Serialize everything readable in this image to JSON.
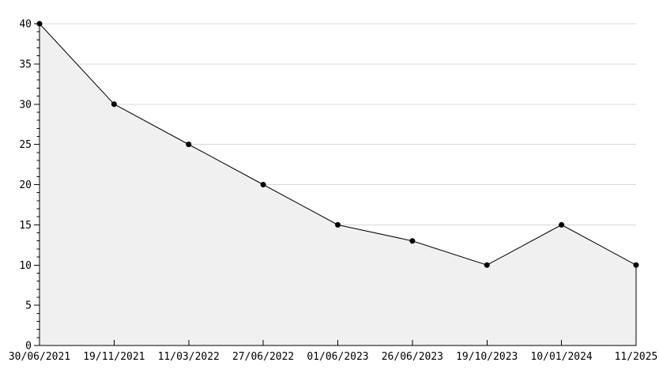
{
  "chart_data": {
    "type": "area",
    "title": "",
    "xlabel": "",
    "ylabel": "",
    "legend": "none",
    "grid": "horizontal-major",
    "marker": "filled-circle",
    "categories": [
      "30/06/2021",
      "19/11/2021",
      "11/03/2022",
      "27/06/2022",
      "01/06/2023",
      "26/06/2023",
      "19/10/2023",
      "10/01/2024",
      "11/2025"
    ],
    "values": [
      40,
      30,
      25,
      20,
      15,
      13,
      10,
      15,
      10
    ],
    "ylim": [
      0,
      40
    ],
    "y_major_step": 5,
    "y_minor_step": 1,
    "y_tick_labels": [
      "0",
      "5",
      "10",
      "15",
      "20",
      "25",
      "30",
      "35",
      "40"
    ],
    "colors": {
      "background": "#ffffff",
      "plot_line": "#000000",
      "marker": "#000000",
      "area_fill": "#f0f0f0",
      "gridline": "#d8d8d8",
      "axis": "#000000",
      "tick_label": "#000000"
    }
  }
}
